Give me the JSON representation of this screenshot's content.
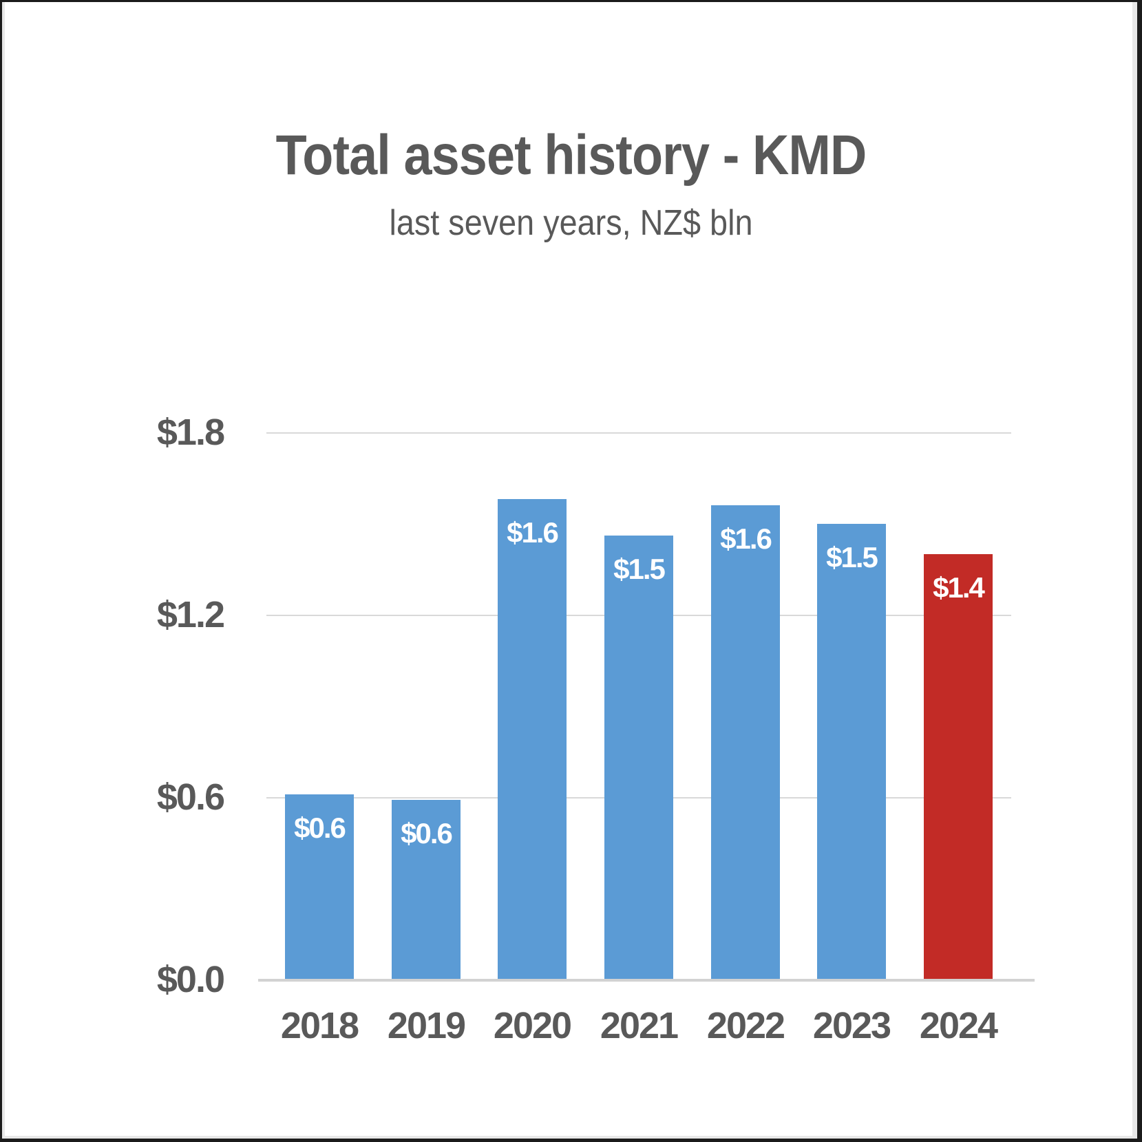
{
  "header": {
    "title": "Total asset history - KMD",
    "subtitle": "last seven years, NZ$ bln"
  },
  "chart_data": {
    "type": "bar",
    "title": "Total asset history - KMD",
    "subtitle": "last seven years, NZ$ bln",
    "categories": [
      "2018",
      "2019",
      "2020",
      "2021",
      "2022",
      "2023",
      "2024"
    ],
    "values": [
      0.61,
      0.59,
      1.58,
      1.46,
      1.56,
      1.5,
      1.4
    ],
    "bar_labels": [
      "$0.6",
      "$0.6",
      "$1.6",
      "$1.5",
      "$1.6",
      "$1.5",
      "$1.4"
    ],
    "bar_colors": [
      "#5b9bd5",
      "#5b9bd5",
      "#5b9bd5",
      "#5b9bd5",
      "#5b9bd5",
      "#5b9bd5",
      "#c22b26"
    ],
    "xlabel": "",
    "ylabel": "",
    "ylim": [
      0,
      1.8
    ],
    "yticks": [
      0.0,
      0.6,
      1.2,
      1.8
    ],
    "ytick_labels": [
      "$0.0",
      "$0.6",
      "$1.2",
      "$1.8"
    ],
    "grid": "horizontal",
    "legend": "none"
  },
  "colors": {
    "series_blue": "#5b9bd5",
    "highlight_red": "#c22b26",
    "text_gray": "#595959",
    "gridline": "#d9d9d9",
    "axis_line": "#d2d2d2",
    "bar_label_text": "#ffffff",
    "frame": "#1b1b1b",
    "background": "#ffffff"
  }
}
